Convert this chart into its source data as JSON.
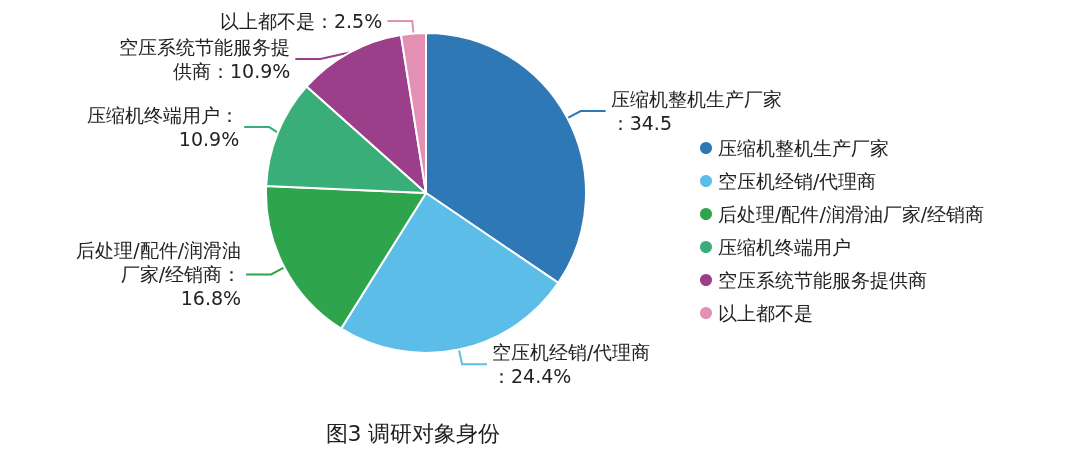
{
  "chart_data": {
    "type": "pie",
    "title": "图3 调研对象身份",
    "categories": [
      "压缩机整机生产厂家",
      "空压机经销/代理商",
      "后处理/配件/润滑油厂家/经销商",
      "压缩机终端用户",
      "空压系统节能服务提供商",
      "以上都不是"
    ],
    "values": [
      34.5,
      24.4,
      16.8,
      10.9,
      10.9,
      2.5
    ],
    "value_labels": [
      "压缩机整机生产厂家：34.5",
      "空压机经销/代理商：24.4%",
      "后处理/配件/润滑油厂家/经销商：16.8%",
      "压缩机终端用户：10.9%",
      "空压系统节能服务提供商：10.9%",
      "以上都不是：2.5%"
    ],
    "colors": [
      "#2f78b6",
      "#5bbde8",
      "#2ea44c",
      "#3aae78",
      "#9b3f8b",
      "#e48fb4"
    ],
    "legend": "right"
  }
}
